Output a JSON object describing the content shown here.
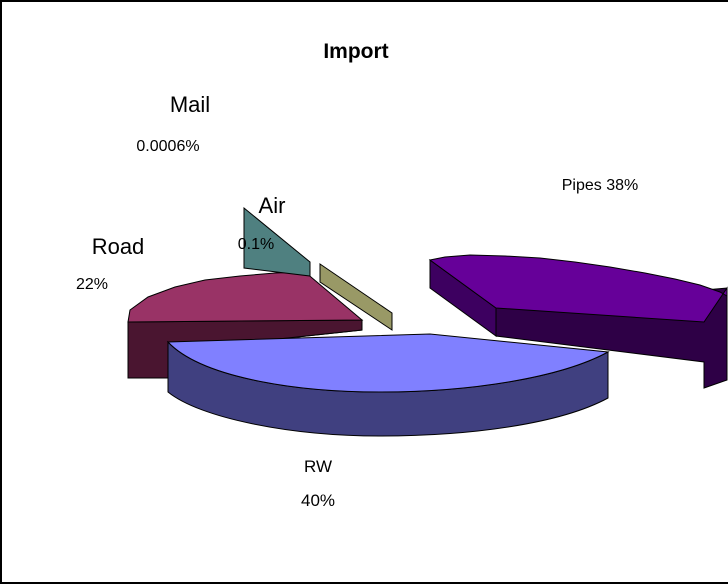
{
  "chart_data": {
    "type": "pie",
    "title": "Import",
    "three_d": true,
    "exploded": true,
    "slices": [
      {
        "name": "Pipes",
        "percent_label": "38%",
        "value": 38,
        "color": "#660099"
      },
      {
        "name": "RW",
        "percent_label": "40%",
        "value": 40,
        "color": "#8080FF"
      },
      {
        "name": "Road",
        "percent_label": "22%",
        "value": 22,
        "color": "#993366"
      },
      {
        "name": "Air",
        "percent_label": "0.1%",
        "value": 0.1,
        "color": "#4F8080"
      },
      {
        "name": "Mail",
        "percent_label": "0.0006%",
        "value": 0.0006,
        "color": "#999966"
      }
    ],
    "labels": {
      "pipes": "Pipes 38%",
      "rw_name": "RW",
      "rw_pct": "40%",
      "road_name": "Road",
      "road_pct": "22%",
      "air_name": "Air",
      "air_pct": "0.1%",
      "mail_name": "Mail",
      "mail_pct": "0.0006%"
    }
  }
}
